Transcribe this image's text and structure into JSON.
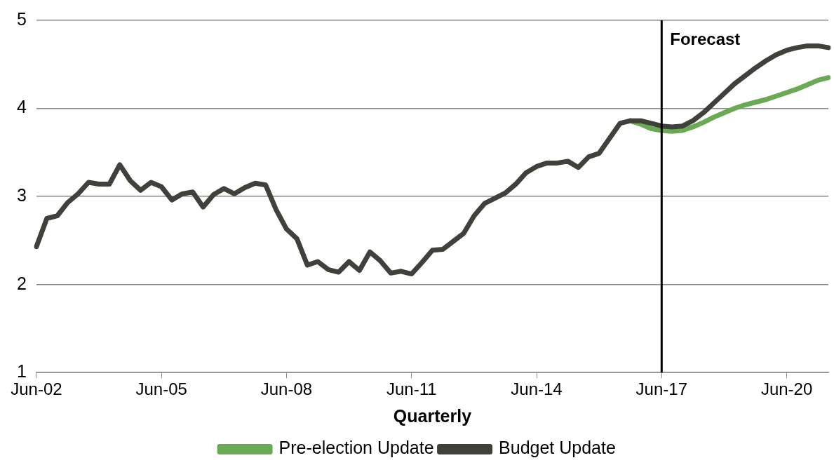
{
  "chart_data": {
    "type": "line",
    "xlabel": "Quarterly",
    "categories": [
      "Jun-02",
      null,
      null,
      null,
      null,
      null,
      null,
      null,
      null,
      null,
      null,
      null,
      "Jun-05",
      null,
      null,
      null,
      null,
      null,
      null,
      null,
      null,
      null,
      null,
      null,
      "Jun-08",
      null,
      null,
      null,
      null,
      null,
      null,
      null,
      null,
      null,
      null,
      null,
      "Jun-11",
      null,
      null,
      null,
      null,
      null,
      null,
      null,
      null,
      null,
      null,
      null,
      "Jun-14",
      null,
      null,
      null,
      null,
      null,
      null,
      null,
      null,
      null,
      null,
      null,
      "Jun-17",
      null,
      null,
      null,
      null,
      null,
      null,
      null,
      null,
      null,
      null,
      null,
      "Jun-20",
      null,
      null,
      null,
      null
    ],
    "series": [
      {
        "name": "Pre-election Update",
        "color": "#6aaa55",
        "values": [
          null,
          null,
          null,
          null,
          null,
          null,
          null,
          null,
          null,
          null,
          null,
          null,
          null,
          null,
          null,
          null,
          null,
          null,
          null,
          null,
          null,
          null,
          null,
          null,
          null,
          null,
          null,
          null,
          null,
          null,
          null,
          null,
          null,
          null,
          null,
          null,
          null,
          null,
          null,
          null,
          null,
          null,
          null,
          null,
          null,
          null,
          null,
          null,
          null,
          null,
          null,
          null,
          null,
          null,
          null,
          null,
          null,
          3.86,
          3.82,
          3.77,
          3.75,
          3.74,
          3.75,
          3.79,
          3.84,
          3.9,
          3.95,
          4.0,
          4.04,
          4.07,
          4.1,
          4.14,
          4.18,
          4.22,
          4.27,
          4.32,
          4.35
        ]
      },
      {
        "name": "Budget Update",
        "color": "#3f423a",
        "values": [
          2.43,
          2.75,
          2.78,
          2.93,
          3.03,
          3.16,
          3.14,
          3.14,
          3.36,
          3.18,
          3.07,
          3.16,
          3.11,
          2.96,
          3.03,
          3.05,
          2.88,
          3.02,
          3.09,
          3.03,
          3.1,
          3.15,
          3.13,
          2.85,
          2.63,
          2.52,
          2.22,
          2.26,
          2.17,
          2.14,
          2.26,
          2.16,
          2.37,
          2.27,
          2.13,
          2.15,
          2.12,
          2.25,
          2.39,
          2.4,
          2.49,
          2.58,
          2.78,
          2.92,
          2.98,
          3.04,
          3.14,
          3.27,
          3.34,
          3.38,
          3.38,
          3.4,
          3.33,
          3.45,
          3.49,
          3.66,
          3.83,
          3.86,
          3.86,
          3.83,
          3.8,
          3.79,
          3.8,
          3.86,
          3.95,
          4.06,
          4.17,
          4.28,
          4.37,
          4.46,
          4.54,
          4.61,
          4.66,
          4.69,
          4.71,
          4.71,
          4.69
        ]
      }
    ],
    "ylim": [
      1,
      5
    ],
    "yticks": [
      1,
      2,
      3,
      4,
      5
    ],
    "grid": "y",
    "legend": "bottom",
    "marker": "none",
    "line_style": "solid",
    "ref_lines": [
      {
        "axis": "x",
        "value": "Jun-17",
        "label": "Forecast",
        "color": "#000000"
      }
    ]
  }
}
